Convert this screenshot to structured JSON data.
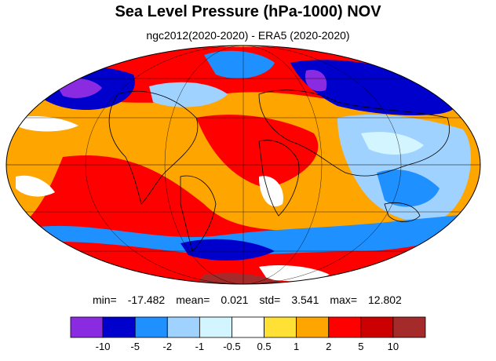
{
  "title": "Sea Level Pressure (hPa-1000) NOV",
  "subtitle": "ngc2012(2020-2020) - ERA5 (2020-2020)",
  "stats": {
    "min_label": "min=",
    "min": "-17.482",
    "mean_label": "mean=",
    "mean": "0.021",
    "std_label": "std=",
    "std": "3.541",
    "max_label": "max=",
    "max": "12.802"
  },
  "colorbar": {
    "colors": [
      "#8a2be2",
      "#0000cd",
      "#1e90ff",
      "#a0d2ff",
      "#d2f5ff",
      "#ffffff",
      "#ffe135",
      "#ffa500",
      "#ff0000",
      "#cc0000",
      "#a52a2a"
    ],
    "labels": [
      "-10",
      "-5",
      "-2",
      "-1",
      "-0.5",
      "0.5",
      "1",
      "2",
      "5",
      "10"
    ]
  },
  "map": {
    "projection": "mollweide",
    "background": "#ffa500"
  }
}
